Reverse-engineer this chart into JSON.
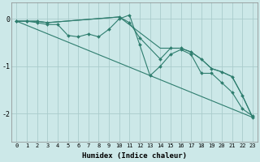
{
  "xlabel": "Humidex (Indice chaleur)",
  "background_color": "#cce8e8",
  "grid_color": "#aacccc",
  "line_color": "#2e7d6e",
  "xlim": [
    -0.5,
    23.5
  ],
  "ylim": [
    -2.6,
    0.35
  ],
  "yticks": [
    0,
    -1,
    -2
  ],
  "xticks": [
    0,
    1,
    2,
    3,
    4,
    5,
    6,
    7,
    8,
    9,
    10,
    11,
    12,
    13,
    14,
    15,
    16,
    17,
    18,
    19,
    20,
    21,
    22,
    23
  ],
  "series_with_markers": [
    {
      "x": [
        0,
        1,
        2,
        3,
        4,
        5,
        6,
        7,
        8,
        9,
        10,
        11,
        12,
        13,
        14,
        15,
        16,
        17,
        18,
        19,
        20,
        21,
        22,
        23
      ],
      "y": [
        -0.05,
        -0.05,
        -0.08,
        -0.12,
        -0.12,
        -0.35,
        -0.38,
        -0.32,
        -0.38,
        -0.22,
        0.0,
        0.08,
        -0.55,
        -1.2,
        -1.0,
        -0.75,
        -0.65,
        -0.75,
        -1.15,
        -1.15,
        -1.35,
        -1.55,
        -1.9,
        -2.05
      ]
    },
    {
      "x": [
        0,
        1,
        2,
        3,
        10,
        11,
        12,
        14,
        15,
        16,
        17,
        18,
        19,
        20,
        21,
        22,
        23
      ],
      "y": [
        -0.05,
        -0.05,
        -0.05,
        -0.08,
        0.04,
        -0.08,
        -0.4,
        -0.85,
        -0.62,
        -0.62,
        -0.7,
        -0.85,
        -1.05,
        -1.12,
        -1.22,
        -1.62,
        -2.08
      ]
    }
  ],
  "series_no_markers": [
    {
      "x": [
        0,
        23
      ],
      "y": [
        -0.05,
        -2.08
      ]
    },
    {
      "x": [
        0,
        1,
        2,
        3,
        10,
        14,
        15,
        16,
        17,
        18,
        19,
        20,
        21,
        22,
        23
      ],
      "y": [
        -0.05,
        -0.05,
        -0.05,
        -0.08,
        0.04,
        -0.62,
        -0.62,
        -0.62,
        -0.7,
        -0.85,
        -1.05,
        -1.12,
        -1.22,
        -1.62,
        -2.08
      ]
    }
  ],
  "tick_fontsize": 5.0,
  "xlabel_fontsize": 6.5,
  "marker_size": 2.0,
  "line_width": 0.8
}
